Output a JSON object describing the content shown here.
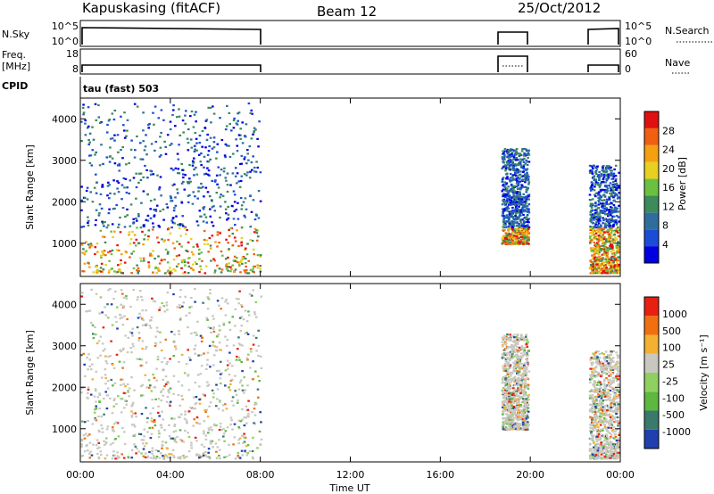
{
  "header": {
    "station": "Kapuskasing (fitACF)",
    "beam": "Beam 12",
    "date": "25/Oct/2012"
  },
  "panels": {
    "nsky": {
      "label": "N.Sky",
      "right_label": "N.Search",
      "ticks_left": [
        "10^5",
        "10^0"
      ],
      "ticks_right": [
        "10^5",
        "10^0"
      ]
    },
    "freq": {
      "label": "Freq.",
      "unit": "[MHz]",
      "right_label": "Nave",
      "ticks_left": [
        "18",
        "8"
      ],
      "ticks_right": [
        "60",
        "0"
      ]
    },
    "cpid": {
      "label": "CPID",
      "text": "tau (fast) 503"
    }
  },
  "chart_data": [
    {
      "type": "heatmap",
      "name": "power",
      "ylabel": "Slant Range [km]",
      "yticks": [
        "4000",
        "3000",
        "2000",
        "1000"
      ],
      "ylim": [
        200,
        4500
      ],
      "xlim": [
        0,
        24
      ],
      "colorbar": {
        "label": "Power [dB]",
        "ticks": [
          "28",
          "24",
          "20",
          "16",
          "12",
          "8",
          "4"
        ],
        "colors": [
          "#0000e0",
          "#1a4cd8",
          "#2f6e9c",
          "#3d8a5a",
          "#6cc040",
          "#e8d020",
          "#f4a010",
          "#f06010",
          "#e01010"
        ]
      },
      "segments": [
        {
          "t0": 0.0,
          "t1": 8.0,
          "r0": 300,
          "r1": 4400
        },
        {
          "t0": 18.7,
          "t1": 19.9,
          "r0": 1000,
          "r1": 3300
        },
        {
          "t0": 22.6,
          "t1": 23.9,
          "r0": 300,
          "r1": 2900
        }
      ]
    },
    {
      "type": "heatmap",
      "name": "velocity",
      "ylabel": "Slant Range [km]",
      "yticks": [
        "4000",
        "3000",
        "2000",
        "1000"
      ],
      "ylim": [
        200,
        4500
      ],
      "xlim": [
        0,
        24
      ],
      "xlabel": "Time UT",
      "xticks": [
        "00:00",
        "04:00",
        "08:00",
        "12:00",
        "16:00",
        "20:00",
        "00:00"
      ],
      "colorbar": {
        "label": "Velocity [m s⁻¹]",
        "ticks": [
          "1000",
          "500",
          "100",
          "25",
          "-25",
          "-100",
          "-500",
          "-1000"
        ],
        "colors": [
          "#2040b0",
          "#3a7a6a",
          "#5cb840",
          "#90d060",
          "#c8c8c0",
          "#f4b030",
          "#f07010",
          "#e82010"
        ]
      },
      "segments": [
        {
          "t0": 0.0,
          "t1": 8.0,
          "r0": 300,
          "r1": 4400
        },
        {
          "t0": 18.7,
          "t1": 19.9,
          "r0": 1000,
          "r1": 3300
        },
        {
          "t0": 22.6,
          "t1": 23.9,
          "r0": 300,
          "r1": 2900
        }
      ]
    }
  ]
}
